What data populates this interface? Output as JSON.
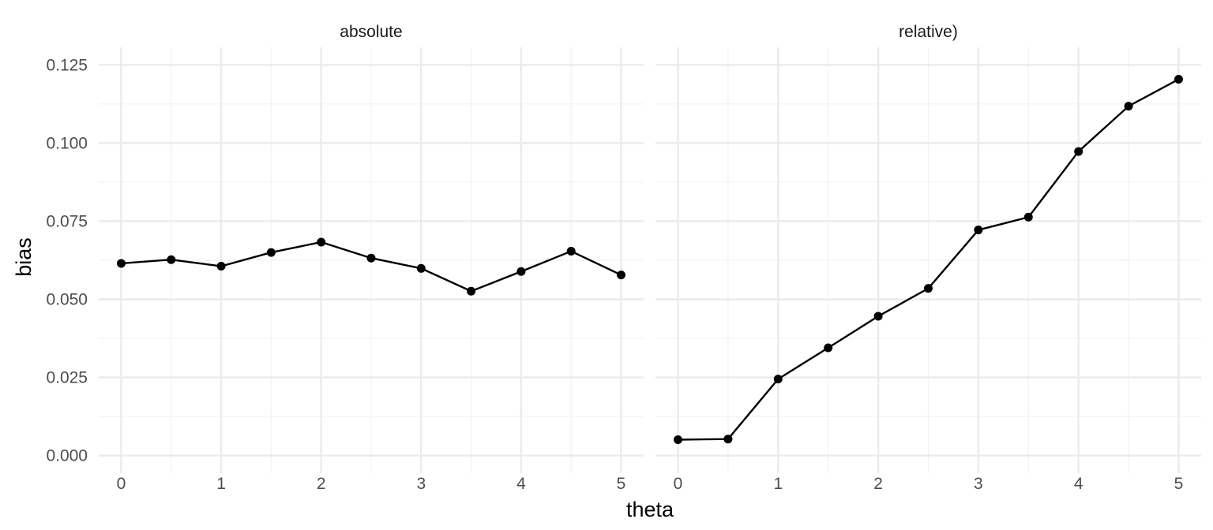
{
  "chart_data": {
    "type": "line",
    "xlabel": "theta",
    "ylabel": "bias",
    "ylim": [
      0,
      0.125
    ],
    "xlim": [
      0,
      5
    ],
    "x_ticks": [
      "0",
      "1",
      "2",
      "3",
      "4",
      "5"
    ],
    "y_ticks": [
      "0.000",
      "0.025",
      "0.050",
      "0.075",
      "0.100",
      "0.125"
    ],
    "grid": true,
    "legend": "none",
    "panels": [
      {
        "title": "absolute",
        "x": [
          0,
          0.5,
          1,
          1.5,
          2,
          2.5,
          3,
          3.5,
          4,
          4.5,
          5
        ],
        "y": [
          0.0615,
          0.0627,
          0.0606,
          0.065,
          0.0683,
          0.0632,
          0.0599,
          0.0526,
          0.0589,
          0.0654,
          0.0578
        ]
      },
      {
        "title": "relative)",
        "x": [
          0,
          0.5,
          1,
          1.5,
          2,
          2.5,
          3,
          3.5,
          4,
          4.5,
          5
        ],
        "y": [
          0.0051,
          0.0053,
          0.0245,
          0.0345,
          0.0446,
          0.0535,
          0.0722,
          0.0763,
          0.0973,
          0.1118,
          0.1204
        ]
      }
    ],
    "colors": {
      "series": "#000000",
      "grid": "#ebebeb",
      "background": "#ffffff"
    }
  }
}
